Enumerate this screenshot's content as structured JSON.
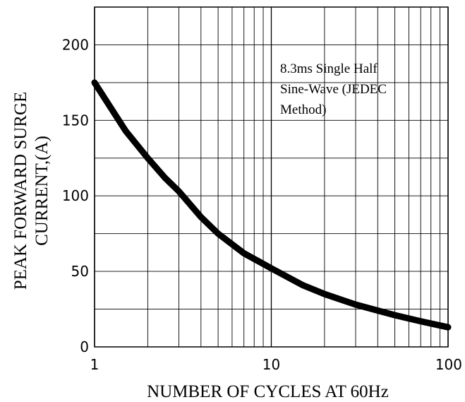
{
  "chart_data": {
    "type": "line",
    "xscale": "log",
    "xlim": [
      1,
      100
    ],
    "ylim": [
      0,
      225
    ],
    "grid": true,
    "xlabel": "NUMBER OF CYCLES AT 60Hz",
    "ylabel": [
      "PEAK FORWARD SURGE",
      "CURRENT,(A)"
    ],
    "xticks": [
      1,
      10,
      100
    ],
    "xtick_labels": [
      "1",
      "10",
      "100"
    ],
    "yticks": [
      0,
      50,
      100,
      150,
      200
    ],
    "ytick_labels": [
      "0",
      "50",
      "100",
      "150",
      "200"
    ],
    "annotation": [
      "8.3ms Single Half",
      "Sine-Wave (JEDEC",
      "Method)"
    ],
    "series": [
      {
        "x": [
          1,
          1.5,
          2,
          2.5,
          3,
          4,
          5,
          7,
          10,
          15,
          20,
          30,
          50,
          70,
          100
        ],
        "y": [
          175,
          143,
          125,
          112,
          103,
          86,
          75,
          62,
          52,
          41,
          35,
          28,
          21,
          17,
          13
        ]
      }
    ]
  }
}
